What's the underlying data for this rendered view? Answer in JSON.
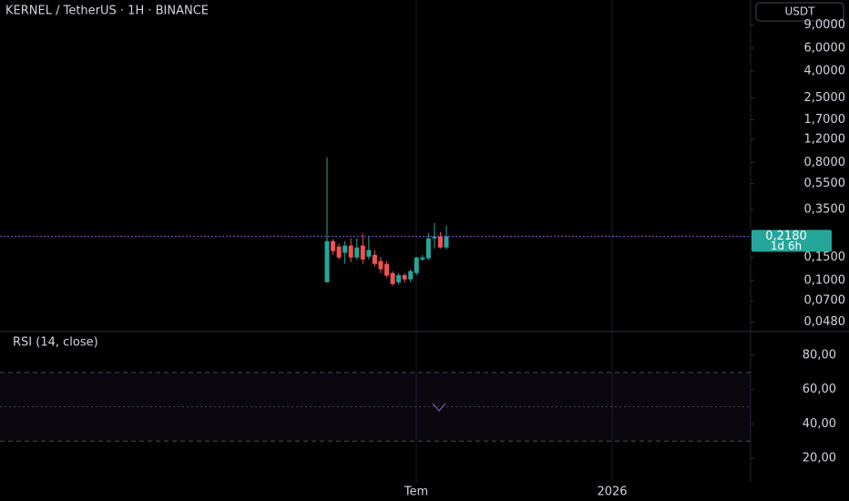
{
  "currency": "USDT",
  "x_labels": [
    "Tem",
    "2026"
  ],
  "chart_data": [
    {
      "type": "candlestick",
      "title": "KERNEL / TetherUS · 1H · BINANCE",
      "log_scale": true,
      "up_color": "#26a69a",
      "down_color": "#ef5350",
      "open": [
        0.097,
        0.2,
        0.182,
        0.163,
        0.185,
        0.15,
        0.185,
        0.152,
        0.157,
        0.141,
        0.134,
        0.114,
        0.097,
        0.11,
        0.102,
        0.114,
        0.145,
        0.148,
        0.21,
        0.217,
        0.179
      ],
      "high": [
        0.877,
        0.207,
        0.191,
        0.2,
        0.21,
        0.21,
        0.228,
        0.217,
        0.171,
        0.152,
        0.141,
        0.118,
        0.114,
        0.114,
        0.122,
        0.152,
        0.157,
        0.231,
        0.276,
        0.235,
        0.263
      ],
      "low": [
        0.097,
        0.157,
        0.145,
        0.134,
        0.138,
        0.145,
        0.134,
        0.145,
        0.128,
        0.114,
        0.105,
        0.091,
        0.093,
        0.096,
        0.097,
        0.11,
        0.141,
        0.143,
        0.176,
        0.176,
        0.173
      ],
      "close": [
        0.2,
        0.168,
        0.15,
        0.185,
        0.15,
        0.179,
        0.145,
        0.171,
        0.134,
        0.122,
        0.109,
        0.094,
        0.11,
        0.102,
        0.118,
        0.15,
        0.15,
        0.21,
        0.217,
        0.179,
        0.218
      ],
      "ylim": [
        0.042,
        14
      ],
      "yticks": [
        {
          "value": 9,
          "label": "9,0000"
        },
        {
          "value": 6,
          "label": "6,0000"
        },
        {
          "value": 4,
          "label": "4,0000"
        },
        {
          "value": 2.5,
          "label": "2,5000"
        },
        {
          "value": 1.7,
          "label": "1,7000"
        },
        {
          "value": 1.2,
          "label": "1,2000"
        },
        {
          "value": 0.8,
          "label": "0,8000"
        },
        {
          "value": 0.55,
          "label": "0,5500"
        },
        {
          "value": 0.35,
          "label": "0,3500"
        },
        {
          "value": 0.15,
          "label": "0,1500"
        },
        {
          "value": 0.1,
          "label": "0,1000"
        },
        {
          "value": 0.07,
          "label": "0,0700"
        },
        {
          "value": 0.048,
          "label": "0,0480"
        }
      ],
      "last_price": {
        "value": 0.218,
        "label": "0,2180"
      },
      "countdown": "1d 6h",
      "price_line_color": "#7e57c2"
    },
    {
      "type": "rsi",
      "title": "RSI (14, close)",
      "ylim": [
        5.7,
        93.3
      ],
      "yticks": [
        {
          "value": 80,
          "label": "80,00"
        },
        {
          "value": 60,
          "label": "60,00"
        },
        {
          "value": 40,
          "label": "40,00"
        },
        {
          "value": 20,
          "label": "20,00"
        }
      ],
      "band": [
        30,
        70
      ],
      "midline": 50,
      "band_color": "#7e57c2"
    }
  ]
}
